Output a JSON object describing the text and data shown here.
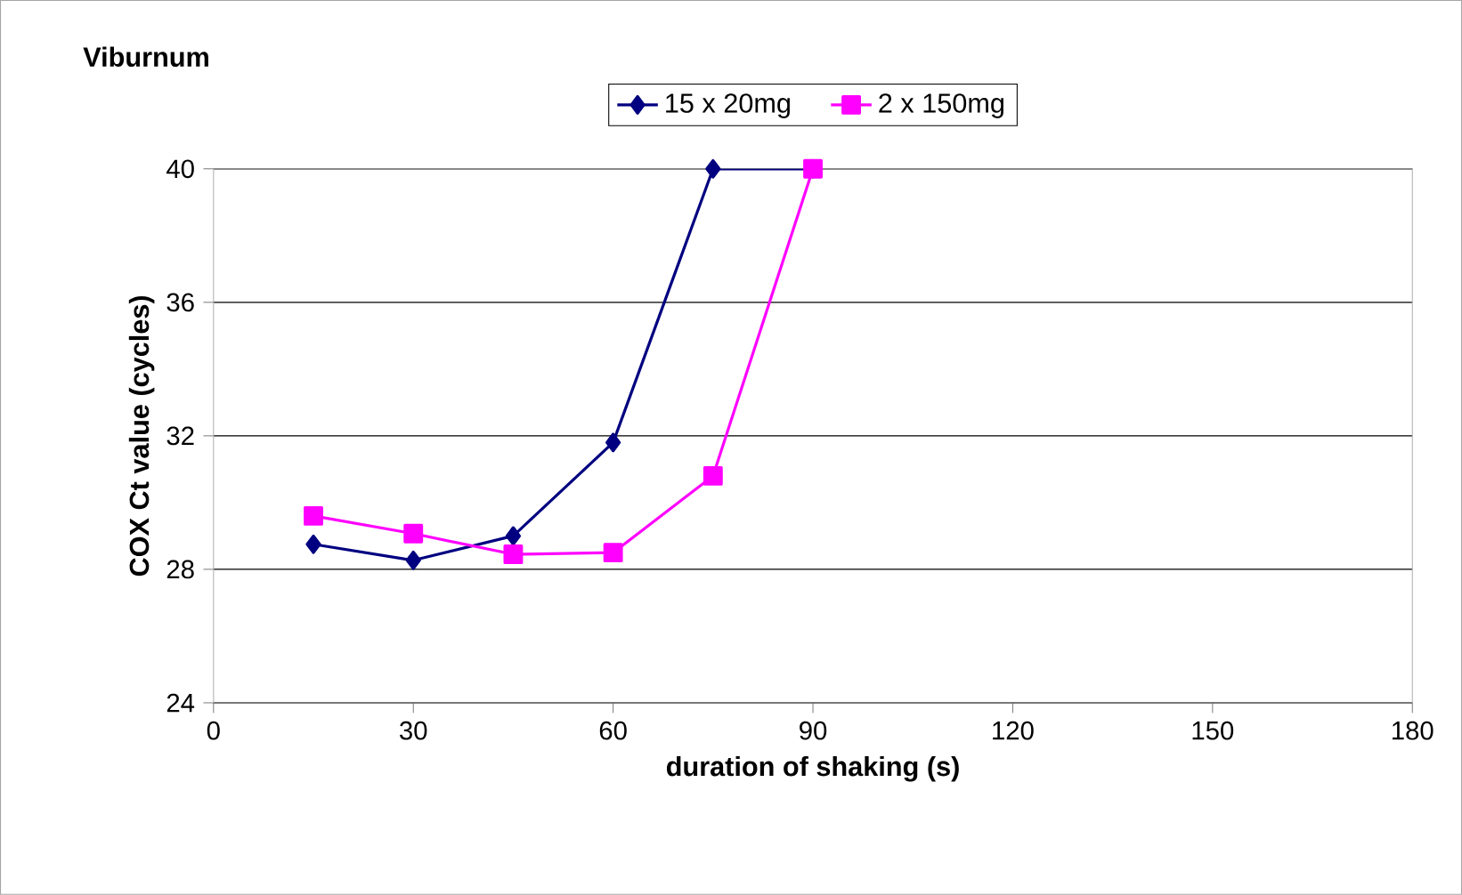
{
  "chart_data": {
    "type": "line",
    "title": "Viburnum",
    "xlabel": "duration of shaking (s)",
    "ylabel": "COX Ct value (cycles)",
    "x": [
      15,
      30,
      45,
      60,
      75,
      90
    ],
    "series": [
      {
        "name": "15 x 20mg",
        "color": "#000080",
        "marker": "diamond",
        "values": [
          28.75,
          28.27,
          29.0,
          31.8,
          40.0,
          40.0
        ]
      },
      {
        "name": "2 x 150mg",
        "color": "#ff00ff",
        "marker": "square",
        "values": [
          29.6,
          29.07,
          28.45,
          28.5,
          30.8,
          40.0
        ]
      }
    ],
    "xlim": [
      0,
      180
    ],
    "xticks": [
      0,
      30,
      60,
      90,
      120,
      150,
      180
    ],
    "ylim": [
      24,
      40
    ],
    "yticks": [
      24,
      28,
      32,
      36,
      40
    ],
    "grid": "y",
    "legend": "top",
    "line_style": "solid"
  }
}
